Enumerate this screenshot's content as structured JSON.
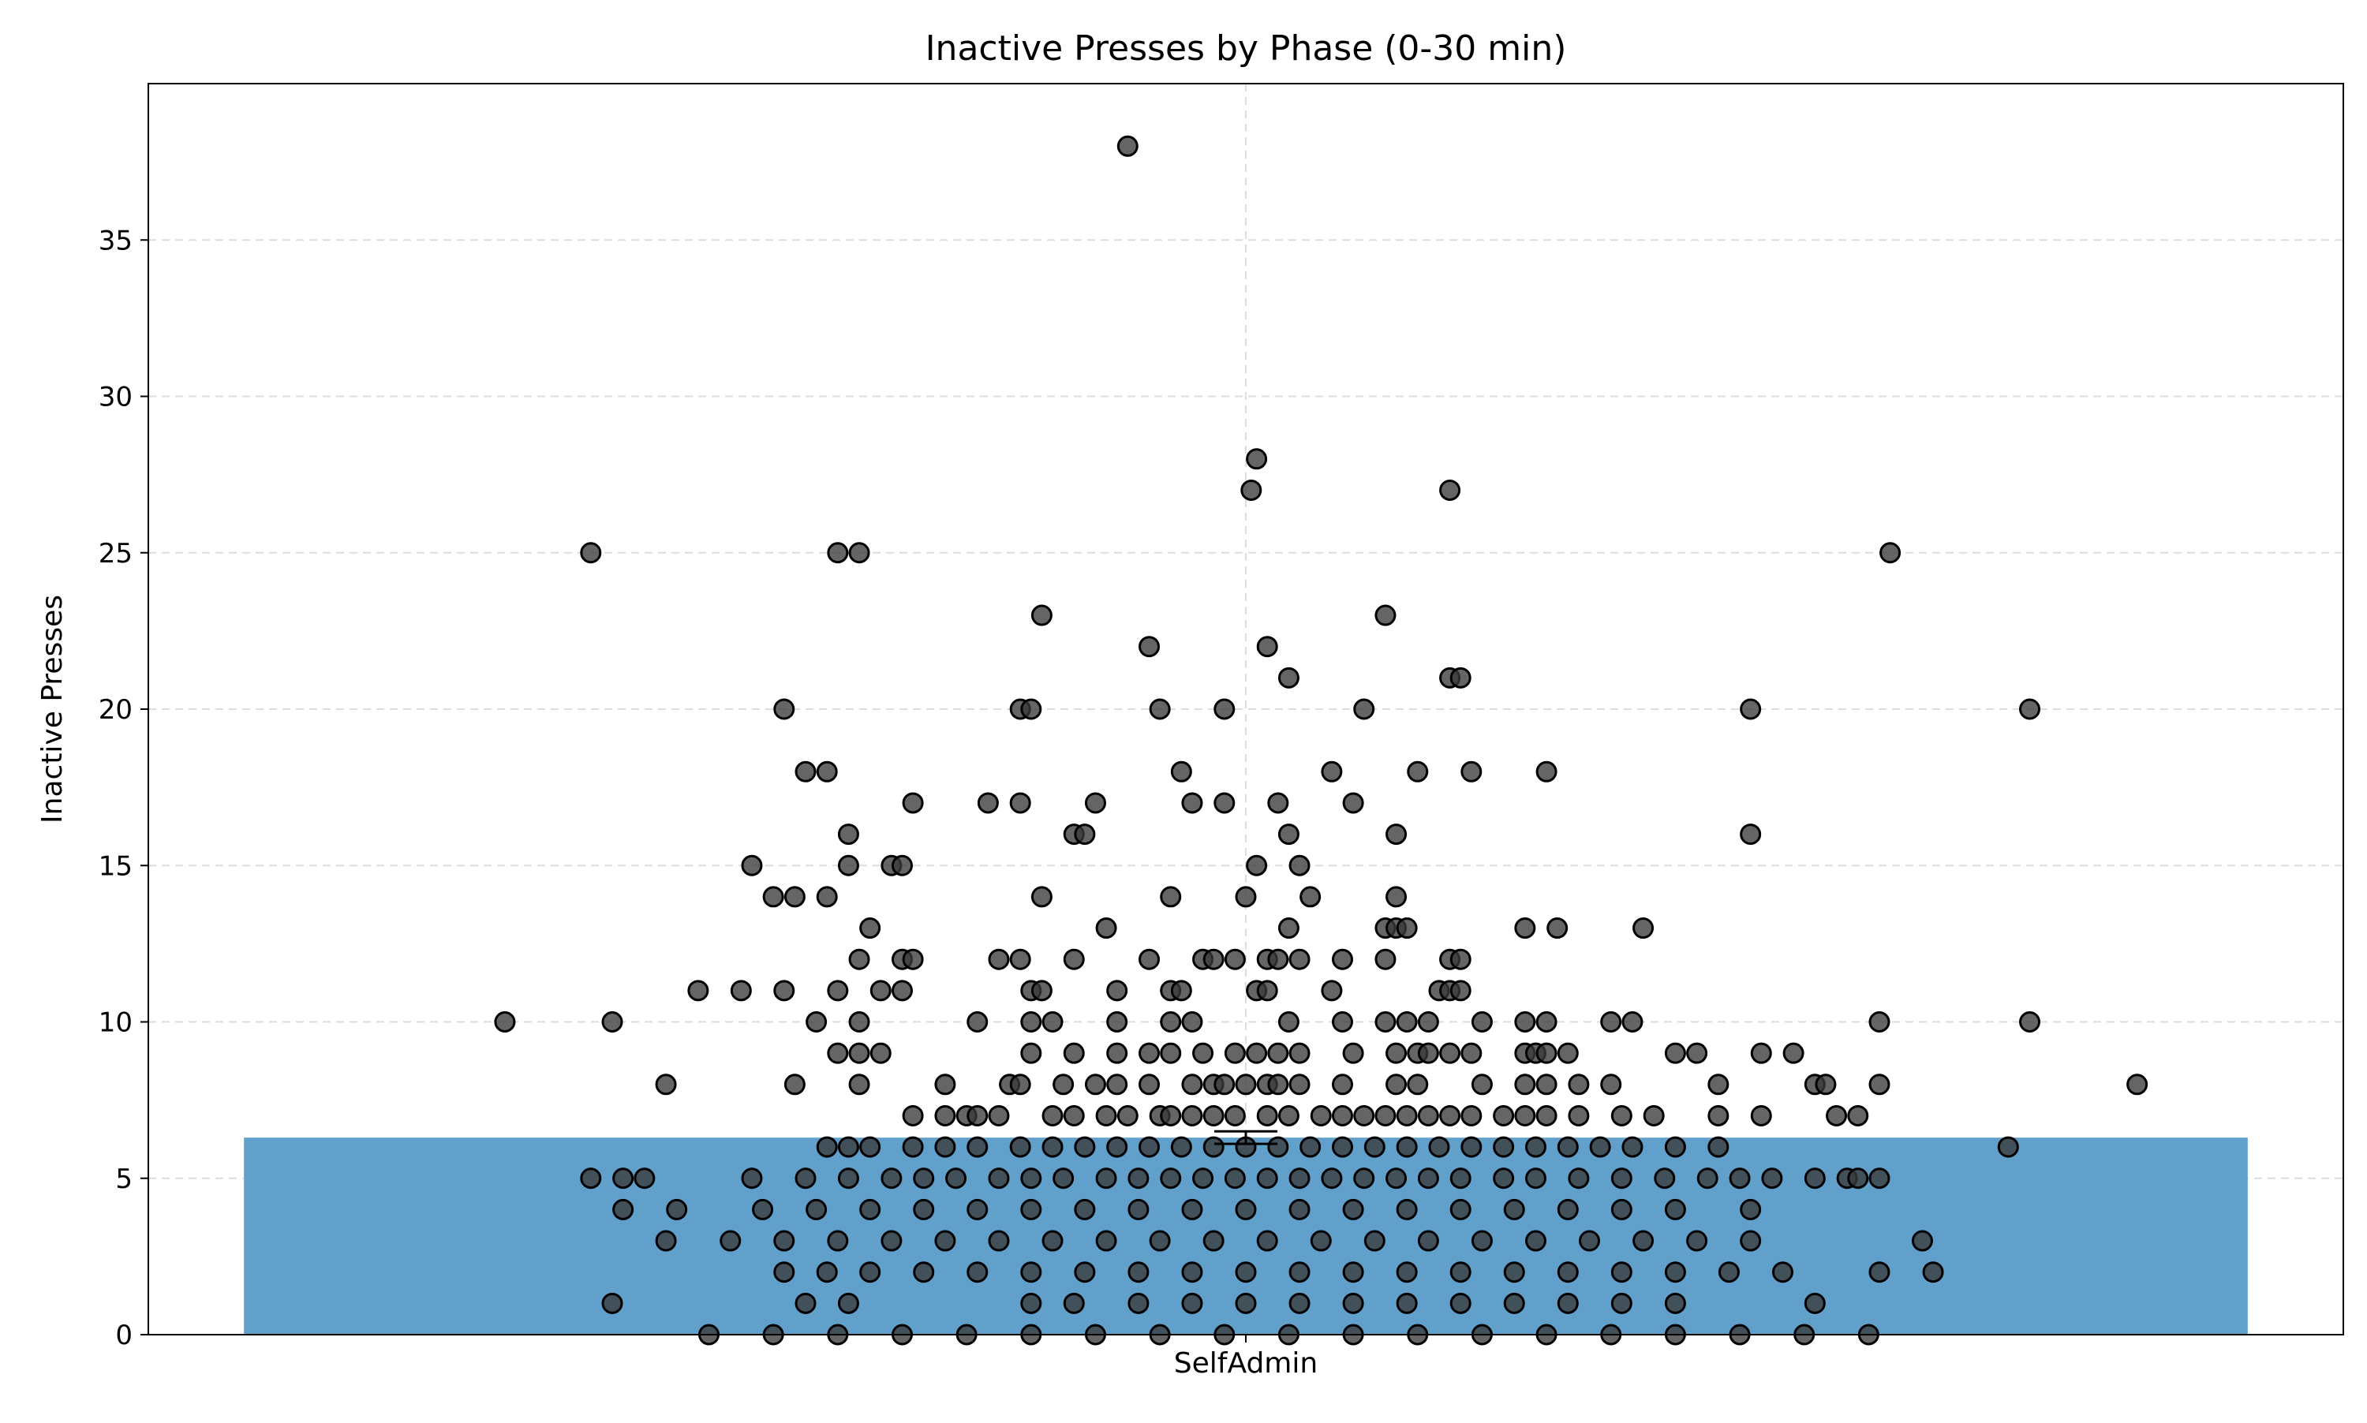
{
  "colors": {
    "bar": "#62a0cc",
    "point": "#3a3a3a",
    "point_edge": "#000000",
    "grid": "#dddddd",
    "axis": "#000000"
  },
  "chart_data": {
    "type": "bar",
    "title": "Inactive Presses by Phase (0-30 min)",
    "xlabel": "",
    "ylabel": "Inactive Presses",
    "categories": [
      "SelfAdmin"
    ],
    "values": [
      6.3
    ],
    "error": {
      "lower": 6.1,
      "upper": 6.5
    },
    "ylim": [
      0,
      40
    ],
    "yticks": [
      0,
      5,
      10,
      15,
      20,
      25,
      30,
      35
    ],
    "grid": true,
    "legend": "none",
    "x_jitter_range": [
      -1.0,
      1.0
    ],
    "points": [
      [
        -0.11,
        38
      ],
      [
        0.01,
        28
      ],
      [
        0.005,
        27
      ],
      [
        0.19,
        27
      ],
      [
        -0.61,
        25
      ],
      [
        -0.38,
        25
      ],
      [
        -0.36,
        25
      ],
      [
        0.6,
        25
      ],
      [
        0.13,
        23
      ],
      [
        -0.19,
        23
      ],
      [
        -0.09,
        22
      ],
      [
        0.02,
        22
      ],
      [
        0.04,
        21
      ],
      [
        0.19,
        21
      ],
      [
        0.2,
        21
      ],
      [
        -0.43,
        20
      ],
      [
        -0.21,
        20
      ],
      [
        -0.2,
        20
      ],
      [
        -0.08,
        20
      ],
      [
        -0.02,
        20
      ],
      [
        0.11,
        20
      ],
      [
        0.47,
        20
      ],
      [
        0.73,
        20
      ],
      [
        -0.41,
        18
      ],
      [
        -0.39,
        18
      ],
      [
        -0.06,
        18
      ],
      [
        0.08,
        18
      ],
      [
        0.16,
        18
      ],
      [
        0.21,
        18
      ],
      [
        0.28,
        18
      ],
      [
        -0.31,
        17
      ],
      [
        -0.24,
        17
      ],
      [
        -0.21,
        17
      ],
      [
        -0.14,
        17
      ],
      [
        -0.05,
        17
      ],
      [
        -0.02,
        17
      ],
      [
        0.03,
        17
      ],
      [
        0.1,
        17
      ],
      [
        0.47,
        16
      ],
      [
        -0.37,
        16
      ],
      [
        -0.16,
        16
      ],
      [
        -0.15,
        16
      ],
      [
        0.04,
        16
      ],
      [
        0.14,
        16
      ],
      [
        -0.46,
        15
      ],
      [
        -0.37,
        15
      ],
      [
        -0.33,
        15
      ],
      [
        -0.32,
        15
      ],
      [
        0.01,
        15
      ],
      [
        0.05,
        15
      ],
      [
        -0.44,
        14
      ],
      [
        -0.42,
        14
      ],
      [
        -0.39,
        14
      ],
      [
        -0.19,
        14
      ],
      [
        -0.07,
        14
      ],
      [
        0.0,
        14
      ],
      [
        0.06,
        14
      ],
      [
        0.14,
        14
      ],
      [
        -0.35,
        13
      ],
      [
        -0.13,
        13
      ],
      [
        0.04,
        13
      ],
      [
        0.13,
        13
      ],
      [
        0.14,
        13
      ],
      [
        0.15,
        13
      ],
      [
        0.26,
        13
      ],
      [
        0.29,
        13
      ],
      [
        0.37,
        13
      ],
      [
        -0.36,
        12
      ],
      [
        -0.32,
        12
      ],
      [
        -0.31,
        12
      ],
      [
        -0.23,
        12
      ],
      [
        -0.21,
        12
      ],
      [
        -0.16,
        12
      ],
      [
        -0.09,
        12
      ],
      [
        -0.04,
        12
      ],
      [
        -0.03,
        12
      ],
      [
        -0.01,
        12
      ],
      [
        0.02,
        12
      ],
      [
        0.03,
        12
      ],
      [
        0.05,
        12
      ],
      [
        0.09,
        12
      ],
      [
        0.13,
        12
      ],
      [
        0.19,
        12
      ],
      [
        0.2,
        12
      ],
      [
        -0.51,
        11
      ],
      [
        -0.47,
        11
      ],
      [
        -0.43,
        11
      ],
      [
        -0.38,
        11
      ],
      [
        -0.34,
        11
      ],
      [
        -0.32,
        11
      ],
      [
        -0.2,
        11
      ],
      [
        -0.19,
        11
      ],
      [
        -0.12,
        11
      ],
      [
        -0.07,
        11
      ],
      [
        -0.06,
        11
      ],
      [
        0.01,
        11
      ],
      [
        0.02,
        11
      ],
      [
        0.08,
        11
      ],
      [
        0.18,
        11
      ],
      [
        0.19,
        11
      ],
      [
        0.2,
        11
      ],
      [
        -0.69,
        10
      ],
      [
        -0.59,
        10
      ],
      [
        -0.4,
        10
      ],
      [
        -0.36,
        10
      ],
      [
        -0.25,
        10
      ],
      [
        -0.2,
        10
      ],
      [
        -0.18,
        10
      ],
      [
        -0.12,
        10
      ],
      [
        -0.07,
        10
      ],
      [
        -0.05,
        10
      ],
      [
        0.04,
        10
      ],
      [
        0.09,
        10
      ],
      [
        0.13,
        10
      ],
      [
        0.15,
        10
      ],
      [
        0.17,
        10
      ],
      [
        0.22,
        10
      ],
      [
        0.26,
        10
      ],
      [
        0.28,
        10
      ],
      [
        0.34,
        10
      ],
      [
        0.36,
        10
      ],
      [
        0.59,
        10
      ],
      [
        0.73,
        10
      ],
      [
        -0.38,
        9
      ],
      [
        -0.36,
        9
      ],
      [
        -0.34,
        9
      ],
      [
        -0.2,
        9
      ],
      [
        -0.16,
        9
      ],
      [
        -0.12,
        9
      ],
      [
        -0.09,
        9
      ],
      [
        -0.07,
        9
      ],
      [
        -0.04,
        9
      ],
      [
        -0.01,
        9
      ],
      [
        0.01,
        9
      ],
      [
        0.03,
        9
      ],
      [
        0.05,
        9
      ],
      [
        0.1,
        9
      ],
      [
        0.14,
        9
      ],
      [
        0.16,
        9
      ],
      [
        0.17,
        9
      ],
      [
        0.19,
        9
      ],
      [
        0.21,
        9
      ],
      [
        0.26,
        9
      ],
      [
        0.27,
        9
      ],
      [
        0.28,
        9
      ],
      [
        0.3,
        9
      ],
      [
        0.4,
        9
      ],
      [
        0.42,
        9
      ],
      [
        0.48,
        9
      ],
      [
        0.51,
        9
      ],
      [
        -0.54,
        8
      ],
      [
        -0.42,
        8
      ],
      [
        -0.36,
        8
      ],
      [
        -0.28,
        8
      ],
      [
        -0.22,
        8
      ],
      [
        -0.21,
        8
      ],
      [
        -0.17,
        8
      ],
      [
        -0.14,
        8
      ],
      [
        -0.12,
        8
      ],
      [
        -0.09,
        8
      ],
      [
        -0.05,
        8
      ],
      [
        -0.03,
        8
      ],
      [
        -0.02,
        8
      ],
      [
        0.0,
        8
      ],
      [
        0.02,
        8
      ],
      [
        0.03,
        8
      ],
      [
        0.05,
        8
      ],
      [
        0.09,
        8
      ],
      [
        0.14,
        8
      ],
      [
        0.16,
        8
      ],
      [
        0.22,
        8
      ],
      [
        0.26,
        8
      ],
      [
        0.28,
        8
      ],
      [
        0.31,
        8
      ],
      [
        0.34,
        8
      ],
      [
        0.44,
        8
      ],
      [
        0.53,
        8
      ],
      [
        0.54,
        8
      ],
      [
        0.59,
        8
      ],
      [
        0.83,
        8
      ],
      [
        -0.31,
        7
      ],
      [
        -0.28,
        7
      ],
      [
        -0.26,
        7
      ],
      [
        -0.25,
        7
      ],
      [
        -0.23,
        7
      ],
      [
        -0.18,
        7
      ],
      [
        -0.16,
        7
      ],
      [
        -0.13,
        7
      ],
      [
        -0.11,
        7
      ],
      [
        -0.08,
        7
      ],
      [
        -0.07,
        7
      ],
      [
        -0.05,
        7
      ],
      [
        -0.03,
        7
      ],
      [
        -0.01,
        7
      ],
      [
        0.02,
        7
      ],
      [
        0.04,
        7
      ],
      [
        0.07,
        7
      ],
      [
        0.09,
        7
      ],
      [
        0.11,
        7
      ],
      [
        0.13,
        7
      ],
      [
        0.15,
        7
      ],
      [
        0.17,
        7
      ],
      [
        0.19,
        7
      ],
      [
        0.21,
        7
      ],
      [
        0.24,
        7
      ],
      [
        0.26,
        7
      ],
      [
        0.28,
        7
      ],
      [
        0.31,
        7
      ],
      [
        0.35,
        7
      ],
      [
        0.38,
        7
      ],
      [
        0.44,
        7
      ],
      [
        0.48,
        7
      ],
      [
        0.55,
        7
      ],
      [
        0.57,
        7
      ],
      [
        -0.39,
        6
      ],
      [
        -0.37,
        6
      ],
      [
        -0.35,
        6
      ],
      [
        -0.31,
        6
      ],
      [
        -0.28,
        6
      ],
      [
        -0.25,
        6
      ],
      [
        -0.21,
        6
      ],
      [
        -0.18,
        6
      ],
      [
        -0.15,
        6
      ],
      [
        -0.12,
        6
      ],
      [
        -0.09,
        6
      ],
      [
        -0.06,
        6
      ],
      [
        -0.03,
        6
      ],
      [
        0.0,
        6
      ],
      [
        0.03,
        6
      ],
      [
        0.06,
        6
      ],
      [
        0.09,
        6
      ],
      [
        0.12,
        6
      ],
      [
        0.15,
        6
      ],
      [
        0.18,
        6
      ],
      [
        0.21,
        6
      ],
      [
        0.24,
        6
      ],
      [
        0.27,
        6
      ],
      [
        0.3,
        6
      ],
      [
        0.33,
        6
      ],
      [
        0.36,
        6
      ],
      [
        0.4,
        6
      ],
      [
        0.44,
        6
      ],
      [
        0.71,
        6
      ],
      [
        -0.61,
        5
      ],
      [
        -0.58,
        5
      ],
      [
        -0.56,
        5
      ],
      [
        -0.46,
        5
      ],
      [
        -0.41,
        5
      ],
      [
        -0.37,
        5
      ],
      [
        -0.33,
        5
      ],
      [
        -0.3,
        5
      ],
      [
        -0.27,
        5
      ],
      [
        -0.23,
        5
      ],
      [
        -0.2,
        5
      ],
      [
        -0.17,
        5
      ],
      [
        -0.13,
        5
      ],
      [
        -0.1,
        5
      ],
      [
        -0.07,
        5
      ],
      [
        -0.04,
        5
      ],
      [
        -0.01,
        5
      ],
      [
        0.02,
        5
      ],
      [
        0.05,
        5
      ],
      [
        0.08,
        5
      ],
      [
        0.11,
        5
      ],
      [
        0.14,
        5
      ],
      [
        0.17,
        5
      ],
      [
        0.2,
        5
      ],
      [
        0.24,
        5
      ],
      [
        0.27,
        5
      ],
      [
        0.31,
        5
      ],
      [
        0.35,
        5
      ],
      [
        0.39,
        5
      ],
      [
        0.43,
        5
      ],
      [
        0.46,
        5
      ],
      [
        0.49,
        5
      ],
      [
        0.53,
        5
      ],
      [
        0.56,
        5
      ],
      [
        0.57,
        5
      ],
      [
        0.59,
        5
      ],
      [
        -0.58,
        4
      ],
      [
        -0.53,
        4
      ],
      [
        -0.45,
        4
      ],
      [
        -0.4,
        4
      ],
      [
        -0.35,
        4
      ],
      [
        -0.3,
        4
      ],
      [
        -0.25,
        4
      ],
      [
        -0.2,
        4
      ],
      [
        -0.15,
        4
      ],
      [
        -0.1,
        4
      ],
      [
        -0.05,
        4
      ],
      [
        0.0,
        4
      ],
      [
        0.05,
        4
      ],
      [
        0.1,
        4
      ],
      [
        0.15,
        4
      ],
      [
        0.2,
        4
      ],
      [
        0.25,
        4
      ],
      [
        0.3,
        4
      ],
      [
        0.35,
        4
      ],
      [
        0.4,
        4
      ],
      [
        0.47,
        4
      ],
      [
        -0.54,
        3
      ],
      [
        -0.48,
        3
      ],
      [
        -0.43,
        3
      ],
      [
        -0.38,
        3
      ],
      [
        -0.33,
        3
      ],
      [
        -0.28,
        3
      ],
      [
        -0.23,
        3
      ],
      [
        -0.18,
        3
      ],
      [
        -0.13,
        3
      ],
      [
        -0.08,
        3
      ],
      [
        -0.03,
        3
      ],
      [
        0.02,
        3
      ],
      [
        0.07,
        3
      ],
      [
        0.12,
        3
      ],
      [
        0.17,
        3
      ],
      [
        0.22,
        3
      ],
      [
        0.27,
        3
      ],
      [
        0.32,
        3
      ],
      [
        0.37,
        3
      ],
      [
        0.42,
        3
      ],
      [
        0.47,
        3
      ],
      [
        0.63,
        3
      ],
      [
        -0.43,
        2
      ],
      [
        -0.39,
        2
      ],
      [
        -0.35,
        2
      ],
      [
        -0.3,
        2
      ],
      [
        -0.25,
        2
      ],
      [
        -0.2,
        2
      ],
      [
        -0.15,
        2
      ],
      [
        -0.1,
        2
      ],
      [
        -0.05,
        2
      ],
      [
        0.0,
        2
      ],
      [
        0.05,
        2
      ],
      [
        0.1,
        2
      ],
      [
        0.15,
        2
      ],
      [
        0.2,
        2
      ],
      [
        0.25,
        2
      ],
      [
        0.3,
        2
      ],
      [
        0.35,
        2
      ],
      [
        0.4,
        2
      ],
      [
        0.45,
        2
      ],
      [
        0.5,
        2
      ],
      [
        0.59,
        2
      ],
      [
        0.64,
        2
      ],
      [
        -0.59,
        1
      ],
      [
        -0.41,
        1
      ],
      [
        -0.37,
        1
      ],
      [
        -0.2,
        1
      ],
      [
        -0.16,
        1
      ],
      [
        -0.1,
        1
      ],
      [
        -0.05,
        1
      ],
      [
        0.0,
        1
      ],
      [
        0.05,
        1
      ],
      [
        0.1,
        1
      ],
      [
        0.15,
        1
      ],
      [
        0.2,
        1
      ],
      [
        0.25,
        1
      ],
      [
        0.3,
        1
      ],
      [
        0.35,
        1
      ],
      [
        0.4,
        1
      ],
      [
        0.53,
        1
      ],
      [
        -0.5,
        0
      ],
      [
        -0.44,
        0
      ],
      [
        -0.38,
        0
      ],
      [
        -0.32,
        0
      ],
      [
        -0.26,
        0
      ],
      [
        -0.2,
        0
      ],
      [
        -0.14,
        0
      ],
      [
        -0.08,
        0
      ],
      [
        -0.02,
        0
      ],
      [
        0.04,
        0
      ],
      [
        0.1,
        0
      ],
      [
        0.16,
        0
      ],
      [
        0.22,
        0
      ],
      [
        0.28,
        0
      ],
      [
        0.34,
        0
      ],
      [
        0.4,
        0
      ],
      [
        0.46,
        0
      ],
      [
        0.52,
        0
      ],
      [
        0.58,
        0
      ]
    ]
  }
}
